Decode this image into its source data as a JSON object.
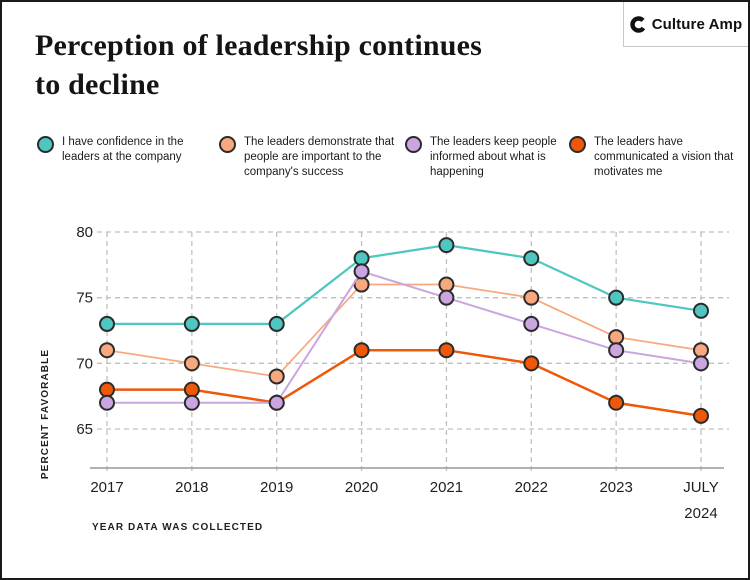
{
  "header": {
    "title": "Perception of leadership continues to decline",
    "logo_text": "Culture Amp"
  },
  "colors": {
    "teal": "#4EC7C1",
    "peach": "#F8A87F",
    "purple": "#CBA5E0",
    "orange": "#EF5808",
    "marker_outline": "#2b2b2b",
    "grid": "#c0c0c0",
    "axis_line": "#999999",
    "text": "#1f1f1f"
  },
  "chart_data": {
    "type": "line",
    "title": "Perception of leadership continues to decline",
    "categories": [
      "2017",
      "2018",
      "2019",
      "2020",
      "2021",
      "2022",
      "2023",
      "JULY 2024"
    ],
    "series": [
      {
        "name": "I have confidence in the leaders at the company",
        "color": "#4EC7C1",
        "values": [
          73,
          73,
          73,
          78,
          79,
          78,
          75,
          74
        ]
      },
      {
        "name": "The leaders demonstrate that people are important to the company's success",
        "color": "#F8A87F",
        "values": [
          71,
          70,
          69,
          76,
          76,
          75,
          72,
          71
        ]
      },
      {
        "name": "The leaders keep people informed about what is happening",
        "color": "#CBA5E0",
        "values": [
          67,
          67,
          67,
          77,
          75,
          73,
          71,
          70
        ]
      },
      {
        "name": "The leaders have communicated a vision that motivates me",
        "color": "#EF5808",
        "values": [
          68,
          68,
          67,
          71,
          71,
          70,
          67,
          66
        ]
      }
    ],
    "draw_order": [
      0,
      1,
      3,
      2
    ],
    "xlabel": "YEAR DATA WAS COLLECTED",
    "ylabel": "PERCENT FAVORABLE",
    "yticks": [
      65,
      70,
      75,
      80
    ],
    "ylim": [
      62,
      81
    ],
    "grid": "dashed",
    "legend_position": "top"
  }
}
